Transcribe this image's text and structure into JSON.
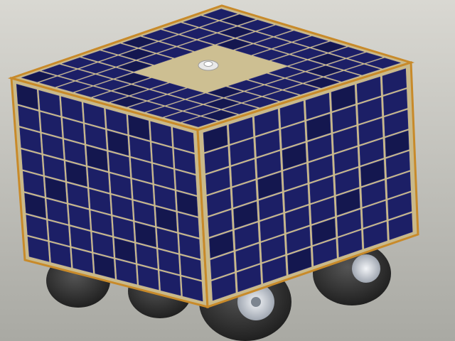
{
  "scene": {
    "subject": "solar-panel-rover-render",
    "colors": {
      "background_top": "#d9d8d2",
      "background_bottom": "#a9a9a3",
      "panel_frame": "#c9b98a",
      "panel_edge": "#c88a2a",
      "solar_cell": "#1c1f66",
      "solar_cell_dark": "#14174f",
      "top_center_plate": "#cdbf92",
      "wheel_tire": "#2c2c2c",
      "wheel_hub": "#cfd4dc"
    },
    "grids": {
      "top_face": {
        "rows": 10,
        "cols": 10,
        "center_cutout": [
          3,
          7
        ]
      },
      "left_face": {
        "rows": 8,
        "cols": 8
      },
      "right_face": {
        "rows": 8,
        "cols": 8
      }
    },
    "wheels": [
      "rear-left",
      "rear-right",
      "front-left",
      "front-right"
    ],
    "icons": [
      "center-knob-icon"
    ]
  }
}
